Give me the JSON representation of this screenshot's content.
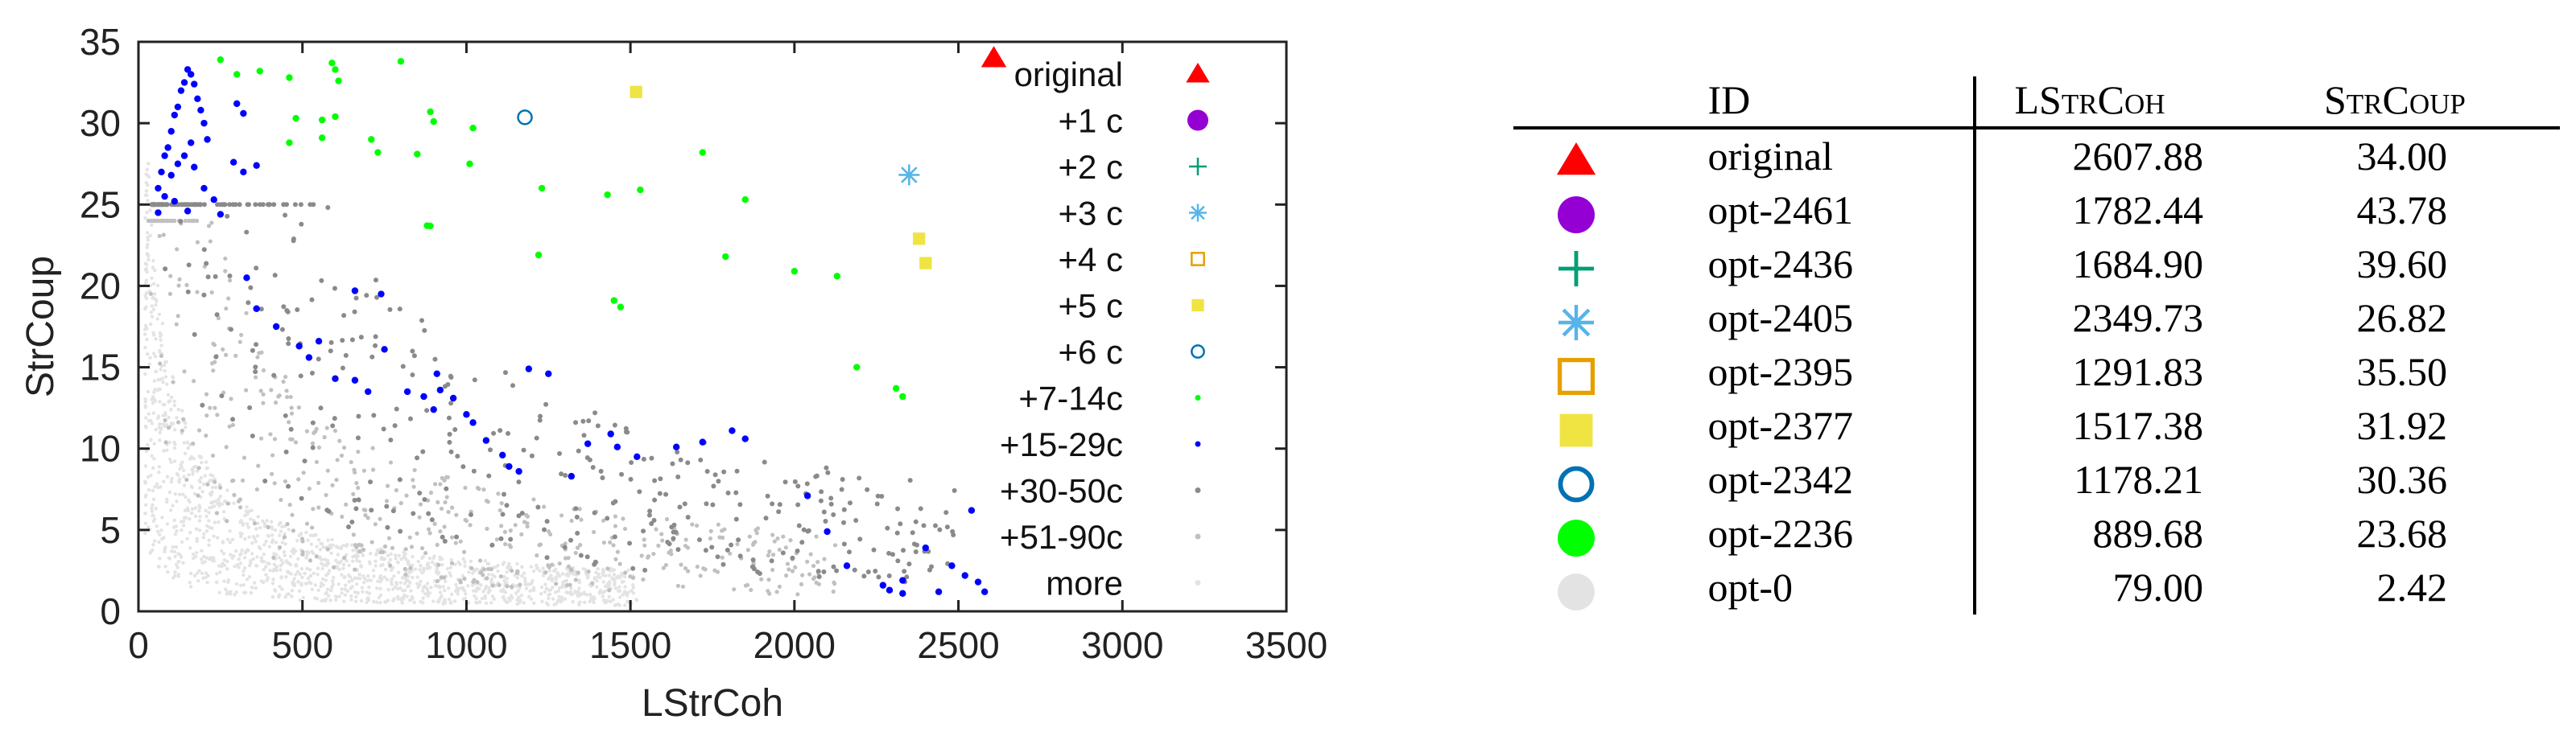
{
  "chart_data": {
    "type": "scatter",
    "xlabel": "LStrCoh",
    "ylabel": "StrCoup",
    "xlim": [
      0,
      3500
    ],
    "ylim": [
      0,
      35
    ],
    "x_ticks": [
      "0",
      "500",
      "1000",
      "1500",
      "2000",
      "2500",
      "3000",
      "3500"
    ],
    "y_ticks": [
      "0",
      "5",
      "10",
      "15",
      "20",
      "25",
      "30",
      "35"
    ],
    "legend_position": "top-right",
    "series": [
      {
        "name": "original",
        "color": "#ff0000",
        "marker": "triangle",
        "points": [
          [
            2607.88,
            34.0
          ]
        ]
      },
      {
        "name": "+1 c",
        "color": "#9400d3",
        "marker": "circle-filled",
        "points": []
      },
      {
        "name": "+2 c",
        "color": "#009e73",
        "marker": "plus",
        "points": []
      },
      {
        "name": "+3 c",
        "color": "#56b4e9",
        "marker": "asterisk",
        "points": [
          [
            2349.73,
            26.82
          ]
        ]
      },
      {
        "name": "+4 c",
        "color": "#e69f00",
        "marker": "square-open",
        "points": []
      },
      {
        "name": "+5 c",
        "color": "#f0e442",
        "marker": "square-filled",
        "points": [
          [
            1517.38,
            31.92
          ],
          [
            2380,
            22.9
          ],
          [
            2400,
            21.4
          ]
        ]
      },
      {
        "name": "+6 c",
        "color": "#0072b2",
        "marker": "circle-open",
        "points": [
          [
            1178.21,
            30.36
          ]
        ]
      },
      {
        "name": "+7-14c",
        "color": "#00ff00",
        "marker": "dot",
        "points": [
          [
            250,
            33.9
          ],
          [
            300,
            33
          ],
          [
            370,
            33.2
          ],
          [
            460,
            32.8
          ],
          [
            590,
            33.7
          ],
          [
            600,
            33.3
          ],
          [
            610,
            32.6
          ],
          [
            800,
            33.8
          ],
          [
            480,
            30.3
          ],
          [
            560,
            30.2
          ],
          [
            600,
            30.4
          ],
          [
            890,
            30.7
          ],
          [
            900,
            30.1
          ],
          [
            1020,
            29.7
          ],
          [
            460,
            28.8
          ],
          [
            560,
            29.1
          ],
          [
            710,
            29
          ],
          [
            730,
            28.2
          ],
          [
            850,
            28.1
          ],
          [
            1010,
            27.5
          ],
          [
            1230,
            26
          ],
          [
            1430,
            25.6
          ],
          [
            1530,
            25.9
          ],
          [
            1720,
            28.2
          ],
          [
            1850,
            25.3
          ],
          [
            880,
            23.7
          ],
          [
            1220,
            21.9
          ],
          [
            1790,
            21.8
          ],
          [
            2000,
            20.9
          ],
          [
            2130,
            20.6
          ],
          [
            1450,
            19.1
          ],
          [
            1470,
            18.7
          ],
          [
            2190,
            15
          ],
          [
            2310,
            13.7
          ],
          [
            2330,
            13.2
          ],
          [
            889.68,
            23.68
          ]
        ]
      },
      {
        "name": "+15-29c",
        "color": "#0000ff",
        "marker": "dot",
        "points": [
          [
            60,
            26
          ],
          [
            70,
            27
          ],
          [
            80,
            28
          ],
          [
            90,
            28.5
          ],
          [
            100,
            29.5
          ],
          [
            110,
            30.5
          ],
          [
            120,
            31
          ],
          [
            130,
            32
          ],
          [
            140,
            32.5
          ],
          [
            150,
            33.3
          ],
          [
            160,
            33
          ],
          [
            170,
            32.4
          ],
          [
            180,
            31.5
          ],
          [
            190,
            30.8
          ],
          [
            200,
            30
          ],
          [
            210,
            29
          ],
          [
            60,
            24.5
          ],
          [
            80,
            25.5
          ],
          [
            100,
            26.8
          ],
          [
            120,
            27.5
          ],
          [
            140,
            28
          ],
          [
            160,
            28.8
          ],
          [
            170,
            27.3
          ],
          [
            200,
            26
          ],
          [
            230,
            25.3
          ],
          [
            250,
            24.4
          ],
          [
            150,
            24.6
          ],
          [
            110,
            25.2
          ],
          [
            290,
            27.6
          ],
          [
            320,
            27
          ],
          [
            360,
            27.4
          ],
          [
            300,
            31.2
          ],
          [
            320,
            30.6
          ],
          [
            330,
            20.5
          ],
          [
            360,
            18.6
          ],
          [
            420,
            17.5
          ],
          [
            490,
            16.3
          ],
          [
            520,
            15.6
          ],
          [
            550,
            16.6
          ],
          [
            660,
            19.7
          ],
          [
            740,
            19.5
          ],
          [
            600,
            14.3
          ],
          [
            660,
            14.2
          ],
          [
            700,
            13.5
          ],
          [
            750,
            16.1
          ],
          [
            820,
            13.5
          ],
          [
            870,
            13.2
          ],
          [
            920,
            13.6
          ],
          [
            900,
            12.4
          ],
          [
            960,
            13.1
          ],
          [
            1000,
            12.1
          ],
          [
            910,
            14.6
          ],
          [
            1020,
            11.6
          ],
          [
            1060,
            10.5
          ],
          [
            1110,
            9.6
          ],
          [
            1130,
            8.9
          ],
          [
            1190,
            14.9
          ],
          [
            1250,
            14.6
          ],
          [
            1320,
            8.3
          ],
          [
            1370,
            10.3
          ],
          [
            1440,
            10.9
          ],
          [
            1460,
            10.1
          ],
          [
            1520,
            9.5
          ],
          [
            1640,
            10.1
          ],
          [
            1720,
            10.4
          ],
          [
            1810,
            11.1
          ],
          [
            1850,
            10.6
          ],
          [
            2040,
            7.1
          ],
          [
            2100,
            4.9
          ],
          [
            2160,
            2.8
          ],
          [
            2270,
            1.6
          ],
          [
            2290,
            1.3
          ],
          [
            2330,
            1.1
          ],
          [
            2440,
            1.2
          ],
          [
            2480,
            2.8
          ],
          [
            2520,
            2.2
          ],
          [
            2540,
            6.2
          ],
          [
            2560,
            1.8
          ],
          [
            2580,
            1.2
          ],
          [
            2400,
            3.9
          ],
          [
            1160,
            8.6
          ],
          [
            2330,
            1.9
          ]
        ]
      }
    ],
    "background_series": [
      {
        "name": "+30-50c",
        "color": "#8a8a8a",
        "marker": "dot"
      },
      {
        "name": "+51-90c",
        "color": "#c0c0c0",
        "marker": "dot"
      },
      {
        "name": "more",
        "color": "#e3e3e3",
        "marker": "dot"
      }
    ]
  },
  "table": {
    "headers": {
      "id": "ID",
      "lstrcoh": "LStrCoh",
      "strcoup": "StrCoup"
    },
    "rows": [
      {
        "marker": "triangle",
        "color": "#ff0000",
        "id": "original",
        "lstrcoh": "2607.88",
        "strcoup": "34.00"
      },
      {
        "marker": "circle-filled",
        "color": "#9400d3",
        "id": "opt-2461",
        "lstrcoh": "1782.44",
        "strcoup": "43.78"
      },
      {
        "marker": "plus",
        "color": "#009e73",
        "id": "opt-2436",
        "lstrcoh": "1684.90",
        "strcoup": "39.60"
      },
      {
        "marker": "asterisk",
        "color": "#56b4e9",
        "id": "opt-2405",
        "lstrcoh": "2349.73",
        "strcoup": "26.82"
      },
      {
        "marker": "square-open",
        "color": "#e69f00",
        "id": "opt-2395",
        "lstrcoh": "1291.83",
        "strcoup": "35.50"
      },
      {
        "marker": "square-filled",
        "color": "#f0e442",
        "id": "opt-2377",
        "lstrcoh": "1517.38",
        "strcoup": "31.92"
      },
      {
        "marker": "circle-open",
        "color": "#0072b2",
        "id": "opt-2342",
        "lstrcoh": "1178.21",
        "strcoup": "30.36"
      },
      {
        "marker": "circle-filled",
        "color": "#00ff00",
        "id": "opt-2236",
        "lstrcoh": "889.68",
        "strcoup": "23.68"
      },
      {
        "marker": "circle-filled",
        "color": "#e3e3e3",
        "id": "opt-0",
        "lstrcoh": "79.00",
        "strcoup": "2.42"
      }
    ]
  }
}
